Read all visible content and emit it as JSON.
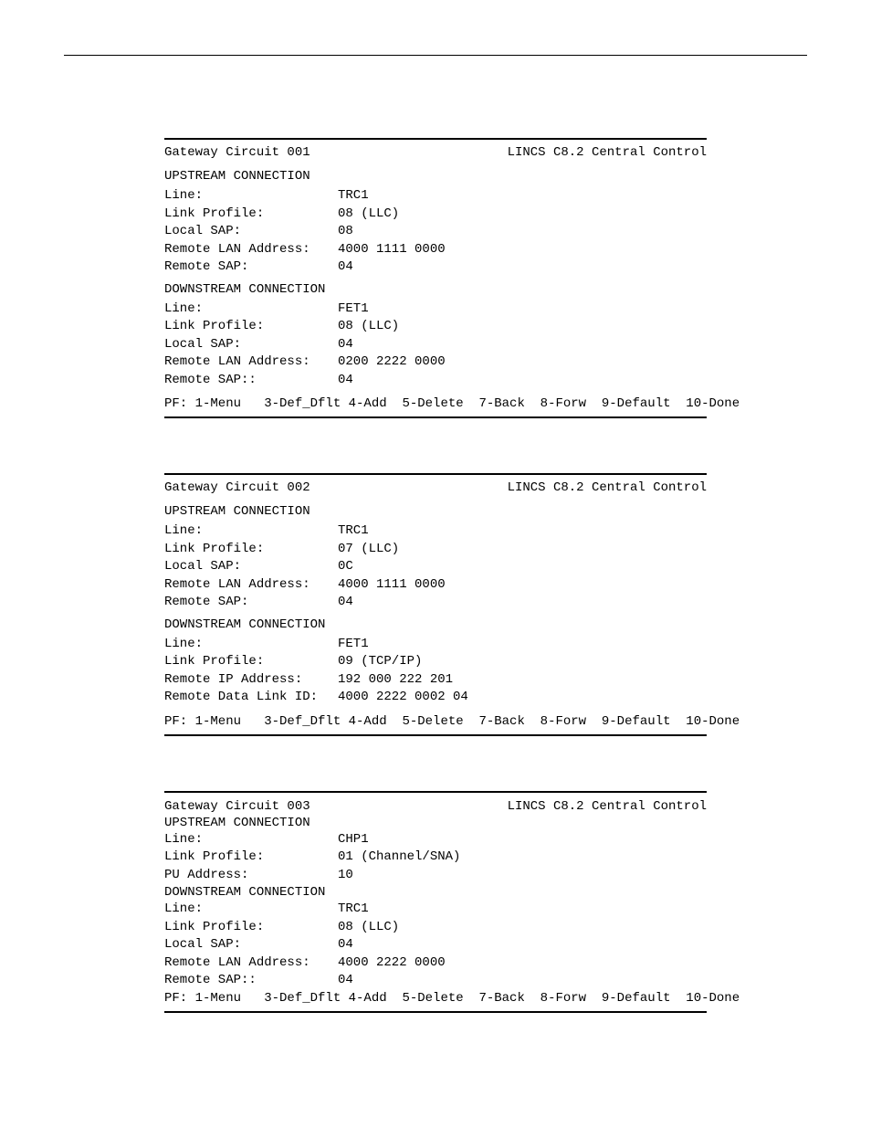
{
  "header_right": "LINCS C8.2 Central Control",
  "pf_line_wide": "PF: 1-Menu   3-Def_Dflt 4-Add  5-Delete  7-Back  8-Forw  9-Default  10-Done",
  "pf_line_tight": "PF: 1-Menu   3-Def_Dflt 4-Add  5-Delete  7-Back  8-Forw  9-Default  10-Done",
  "gc001": {
    "title": "Gateway Circuit 001",
    "up_title": "UPSTREAM CONNECTION",
    "up": {
      "line_l": "Line:",
      "line_v": "TRC1",
      "lp_l": "Link Profile:",
      "lp_v": "08 (LLC)",
      "lsap_l": "Local SAP:",
      "lsap_v": "08",
      "rlan_l": "Remote LAN Address:",
      "rlan_v": "4000 1111 0000",
      "rsap_l": "Remote SAP:",
      "rsap_v": "04"
    },
    "dn_title": "DOWNSTREAM CONNECTION",
    "dn": {
      "line_l": "Line:",
      "line_v": "FET1",
      "lp_l": "Link Profile:",
      "lp_v": "08 (LLC)",
      "lsap_l": "Local SAP:",
      "lsap_v": "04",
      "rlan_l": "Remote LAN Address:",
      "rlan_v": "0200 2222 0000",
      "rsap_l": "Remote SAP::",
      "rsap_v": "04"
    }
  },
  "gc002": {
    "title": "Gateway Circuit 002",
    "up_title": "UPSTREAM CONNECTION",
    "up": {
      "line_l": "Line:",
      "line_v": "TRC1",
      "lp_l": "Link Profile:",
      "lp_v": "07 (LLC)",
      "lsap_l": "Local SAP:",
      "lsap_v": "0C",
      "rlan_l": "Remote LAN Address:",
      "rlan_v": "4000 1111 0000",
      "rsap_l": "Remote SAP:",
      "rsap_v": "04"
    },
    "dn_title": "DOWNSTREAM CONNECTION",
    "dn": {
      "line_l": "Line:",
      "line_v": "FET1",
      "lp_l": "Link Profile:",
      "lp_v": "09 (TCP/IP)",
      "rip_l": "Remote IP Address:",
      "rip_v": "192 000 222 201",
      "rdl_l": "Remote Data Link ID:",
      "rdl_v": "4000 2222 0002 04"
    }
  },
  "gc003": {
    "title": "Gateway Circuit 003",
    "up_title": "UPSTREAM CONNECTION",
    "up": {
      "line_l": "Line:",
      "line_v": "CHP1",
      "lp_l": "Link Profile:",
      "lp_v": "01 (Channel/SNA)",
      "pu_l": "PU Address:",
      "pu_v": "10"
    },
    "dn_title": "DOWNSTREAM CONNECTION",
    "dn": {
      "line_l": "Line:",
      "line_v": "TRC1",
      "lp_l": "Link Profile:",
      "lp_v": "08 (LLC)",
      "lsap_l": "Local SAP:",
      "lsap_v": "04",
      "rlan_l": "Remote LAN Address:",
      "rlan_v": "4000 2222 0000",
      "rsap_l": "Remote SAP::",
      "rsap_v": "04"
    }
  }
}
